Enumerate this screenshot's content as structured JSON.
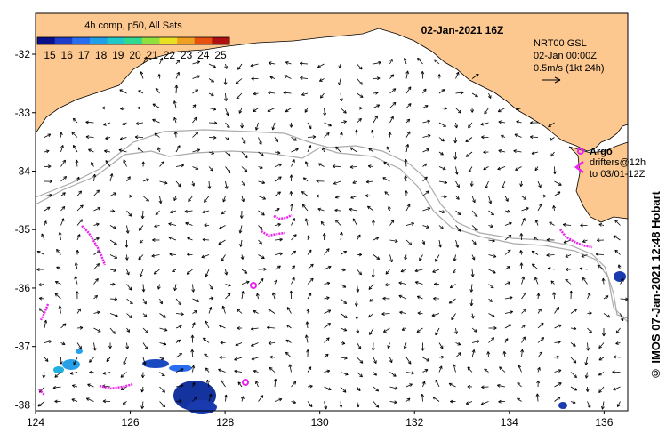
{
  "header": {
    "composite_label": "4h comp, p50, All Sats",
    "date_label": "02-Jan-2021 16Z"
  },
  "colorbar": {
    "ticks": [
      "15",
      "16",
      "17",
      "18",
      "19",
      "20",
      "21",
      "22",
      "23",
      "24",
      "25"
    ],
    "colors": [
      "#0a0f8a",
      "#1e3cc8",
      "#2a6ef0",
      "#20a0e8",
      "#20c8c8",
      "#30d890",
      "#90e040",
      "#e8e020",
      "#f0a020",
      "#e85010",
      "#b01010"
    ]
  },
  "legend": {
    "product": "NRT00 GSL",
    "time": "02-Jan 00:00Z",
    "scale": "0.5m/s (1kt 24h)",
    "argo_label": "Argo",
    "drifters_label": "drifters@12h",
    "drifters_to": "to 03/01-12Z"
  },
  "axes": {
    "x_ticks": [
      "124",
      "126",
      "128",
      "130",
      "132",
      "134",
      "136"
    ],
    "y_ticks": [
      "-32",
      "-33",
      "-34",
      "-35",
      "-36",
      "-37",
      "-38"
    ]
  },
  "colors": {
    "land": "#fcc88f",
    "drifter": "#ee22ee",
    "contour": "#aaaaaa",
    "sst_cold": "#1030a0"
  },
  "credit": "© IMOS 07-Jan-2021 12:48 Hobart"
}
